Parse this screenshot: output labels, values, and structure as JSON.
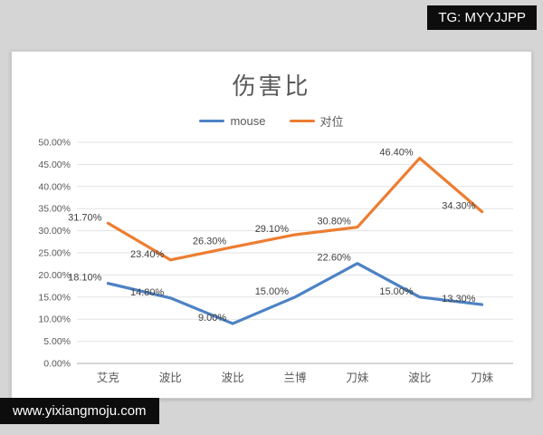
{
  "watermarks": {
    "top": "TG: MYYJJPP",
    "bottom": "www.yixiangmoju.com"
  },
  "chart_data": {
    "type": "line",
    "title": "伤害比",
    "categories": [
      "艾克",
      "波比",
      "波比",
      "兰博",
      "刀妹",
      "波比",
      "刀妹"
    ],
    "series": [
      {
        "name": "mouse",
        "color": "#4d82c4",
        "values": [
          18.1,
          14.8,
          9.0,
          15.0,
          22.6,
          15.0,
          13.3
        ],
        "labels": [
          "18.10%",
          "14.80%",
          "9.00%",
          "15.00%",
          "22.60%",
          "15.00%",
          "13.30%"
        ]
      },
      {
        "name": "对位",
        "color": "#ed7d31",
        "values": [
          31.7,
          23.4,
          26.3,
          29.1,
          30.8,
          46.4,
          34.3
        ],
        "labels": [
          "31.70%",
          "23.40%",
          "26.30%",
          "29.10%",
          "30.80%",
          "46.40%",
          "34.30%"
        ]
      }
    ],
    "ylim": [
      0,
      50
    ],
    "ytick_step": 5,
    "ytick_labels": [
      "0.00%",
      "5.00%",
      "10.00%",
      "15.00%",
      "20.00%",
      "25.00%",
      "30.00%",
      "35.00%",
      "40.00%",
      "45.00%",
      "50.00%"
    ],
    "legend_position": "top",
    "grid": "horizontal",
    "data_label_position": "left"
  }
}
